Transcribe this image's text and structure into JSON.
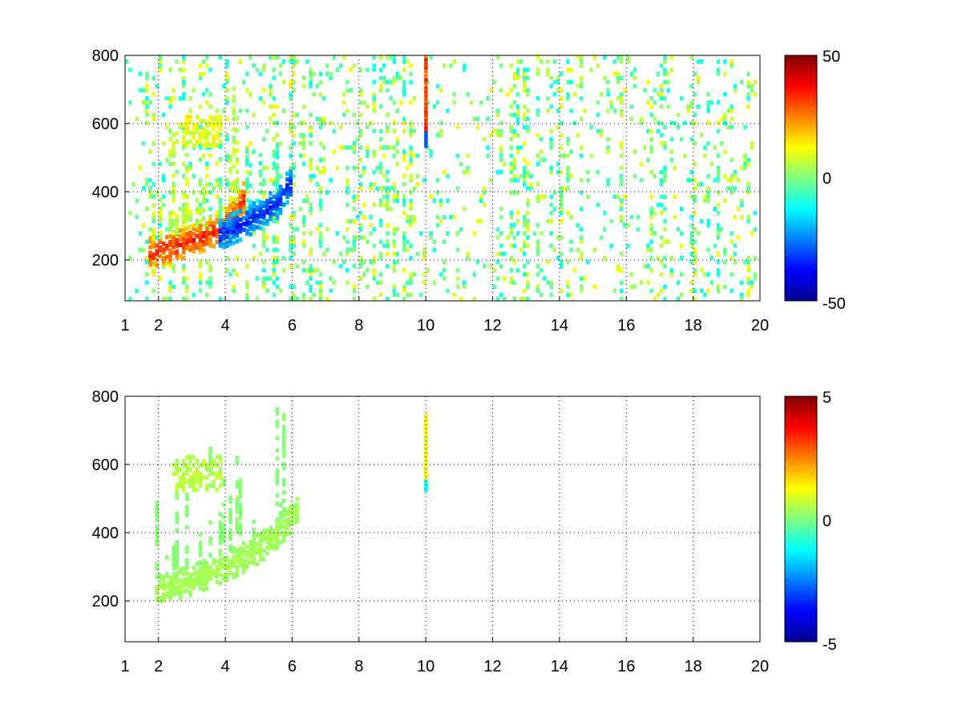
{
  "chart_data": [
    {
      "type": "heatmap",
      "title": "",
      "xlabel": "",
      "ylabel": "",
      "xlim": [
        1,
        20
      ],
      "ylim": [
        80,
        800
      ],
      "x_ticks": [
        1,
        2,
        4,
        6,
        8,
        10,
        12,
        14,
        16,
        18,
        20
      ],
      "y_ticks": [
        200,
        400,
        600,
        800
      ],
      "grid": true,
      "colormap": "jet",
      "colorbar": {
        "range": [
          -50,
          50
        ],
        "tick_labels": [
          "50",
          "0",
          "-50"
        ],
        "position": "right"
      },
      "features": [
        {
          "kind": "ridge",
          "x": [
            1.7,
            2.5,
            3.2,
            3.8,
            4.3,
            4.6
          ],
          "y": [
            215,
            235,
            260,
            285,
            330,
            400
          ],
          "value": 40
        },
        {
          "kind": "ridge",
          "x": [
            3.8,
            4.5,
            5.0,
            5.5,
            5.9
          ],
          "y": [
            270,
            300,
            330,
            360,
            420
          ],
          "value": -40
        },
        {
          "kind": "band",
          "x_range": [
            2.5,
            3.9
          ],
          "y_range": [
            530,
            620
          ],
          "value": 15
        },
        {
          "kind": "spike",
          "x": 10.0,
          "y_range": [
            530,
            800
          ],
          "value": 35
        }
      ],
      "background_noise": {
        "x_range": [
          1,
          20
        ],
        "value_range": [
          -12,
          12
        ]
      }
    },
    {
      "type": "heatmap",
      "title": "",
      "xlabel": "",
      "ylabel": "",
      "xlim": [
        1,
        20
      ],
      "ylim": [
        80,
        800
      ],
      "x_ticks": [
        1,
        2,
        4,
        6,
        8,
        10,
        12,
        14,
        16,
        18,
        20
      ],
      "y_ticks": [
        200,
        400,
        600,
        800
      ],
      "grid": true,
      "colormap": "jet",
      "colorbar": {
        "range": [
          -5,
          5
        ],
        "tick_labels": [
          "5",
          "0",
          "-5"
        ],
        "position": "right"
      },
      "features": [
        {
          "kind": "ridge",
          "x": [
            1.9,
            2.8,
            3.6,
            4.3,
            5.0,
            5.6,
            6.1
          ],
          "y": [
            225,
            250,
            280,
            310,
            350,
            400,
            460
          ],
          "value": 0.5
        },
        {
          "kind": "band",
          "x_range": [
            2.4,
            3.9
          ],
          "y_range": [
            520,
            620
          ],
          "value": 0.8
        },
        {
          "kind": "spike",
          "x": 10.0,
          "y_range": [
            520,
            740
          ],
          "value": 1.5
        }
      ]
    }
  ],
  "colors": {
    "jet_dark_red": "#800000",
    "jet_red": "#ff0000",
    "jet_yellow": "#ffff00",
    "jet_cyan": "#00ffff",
    "jet_blue": "#0000ff",
    "jet_dark_blue": "#00008f"
  }
}
